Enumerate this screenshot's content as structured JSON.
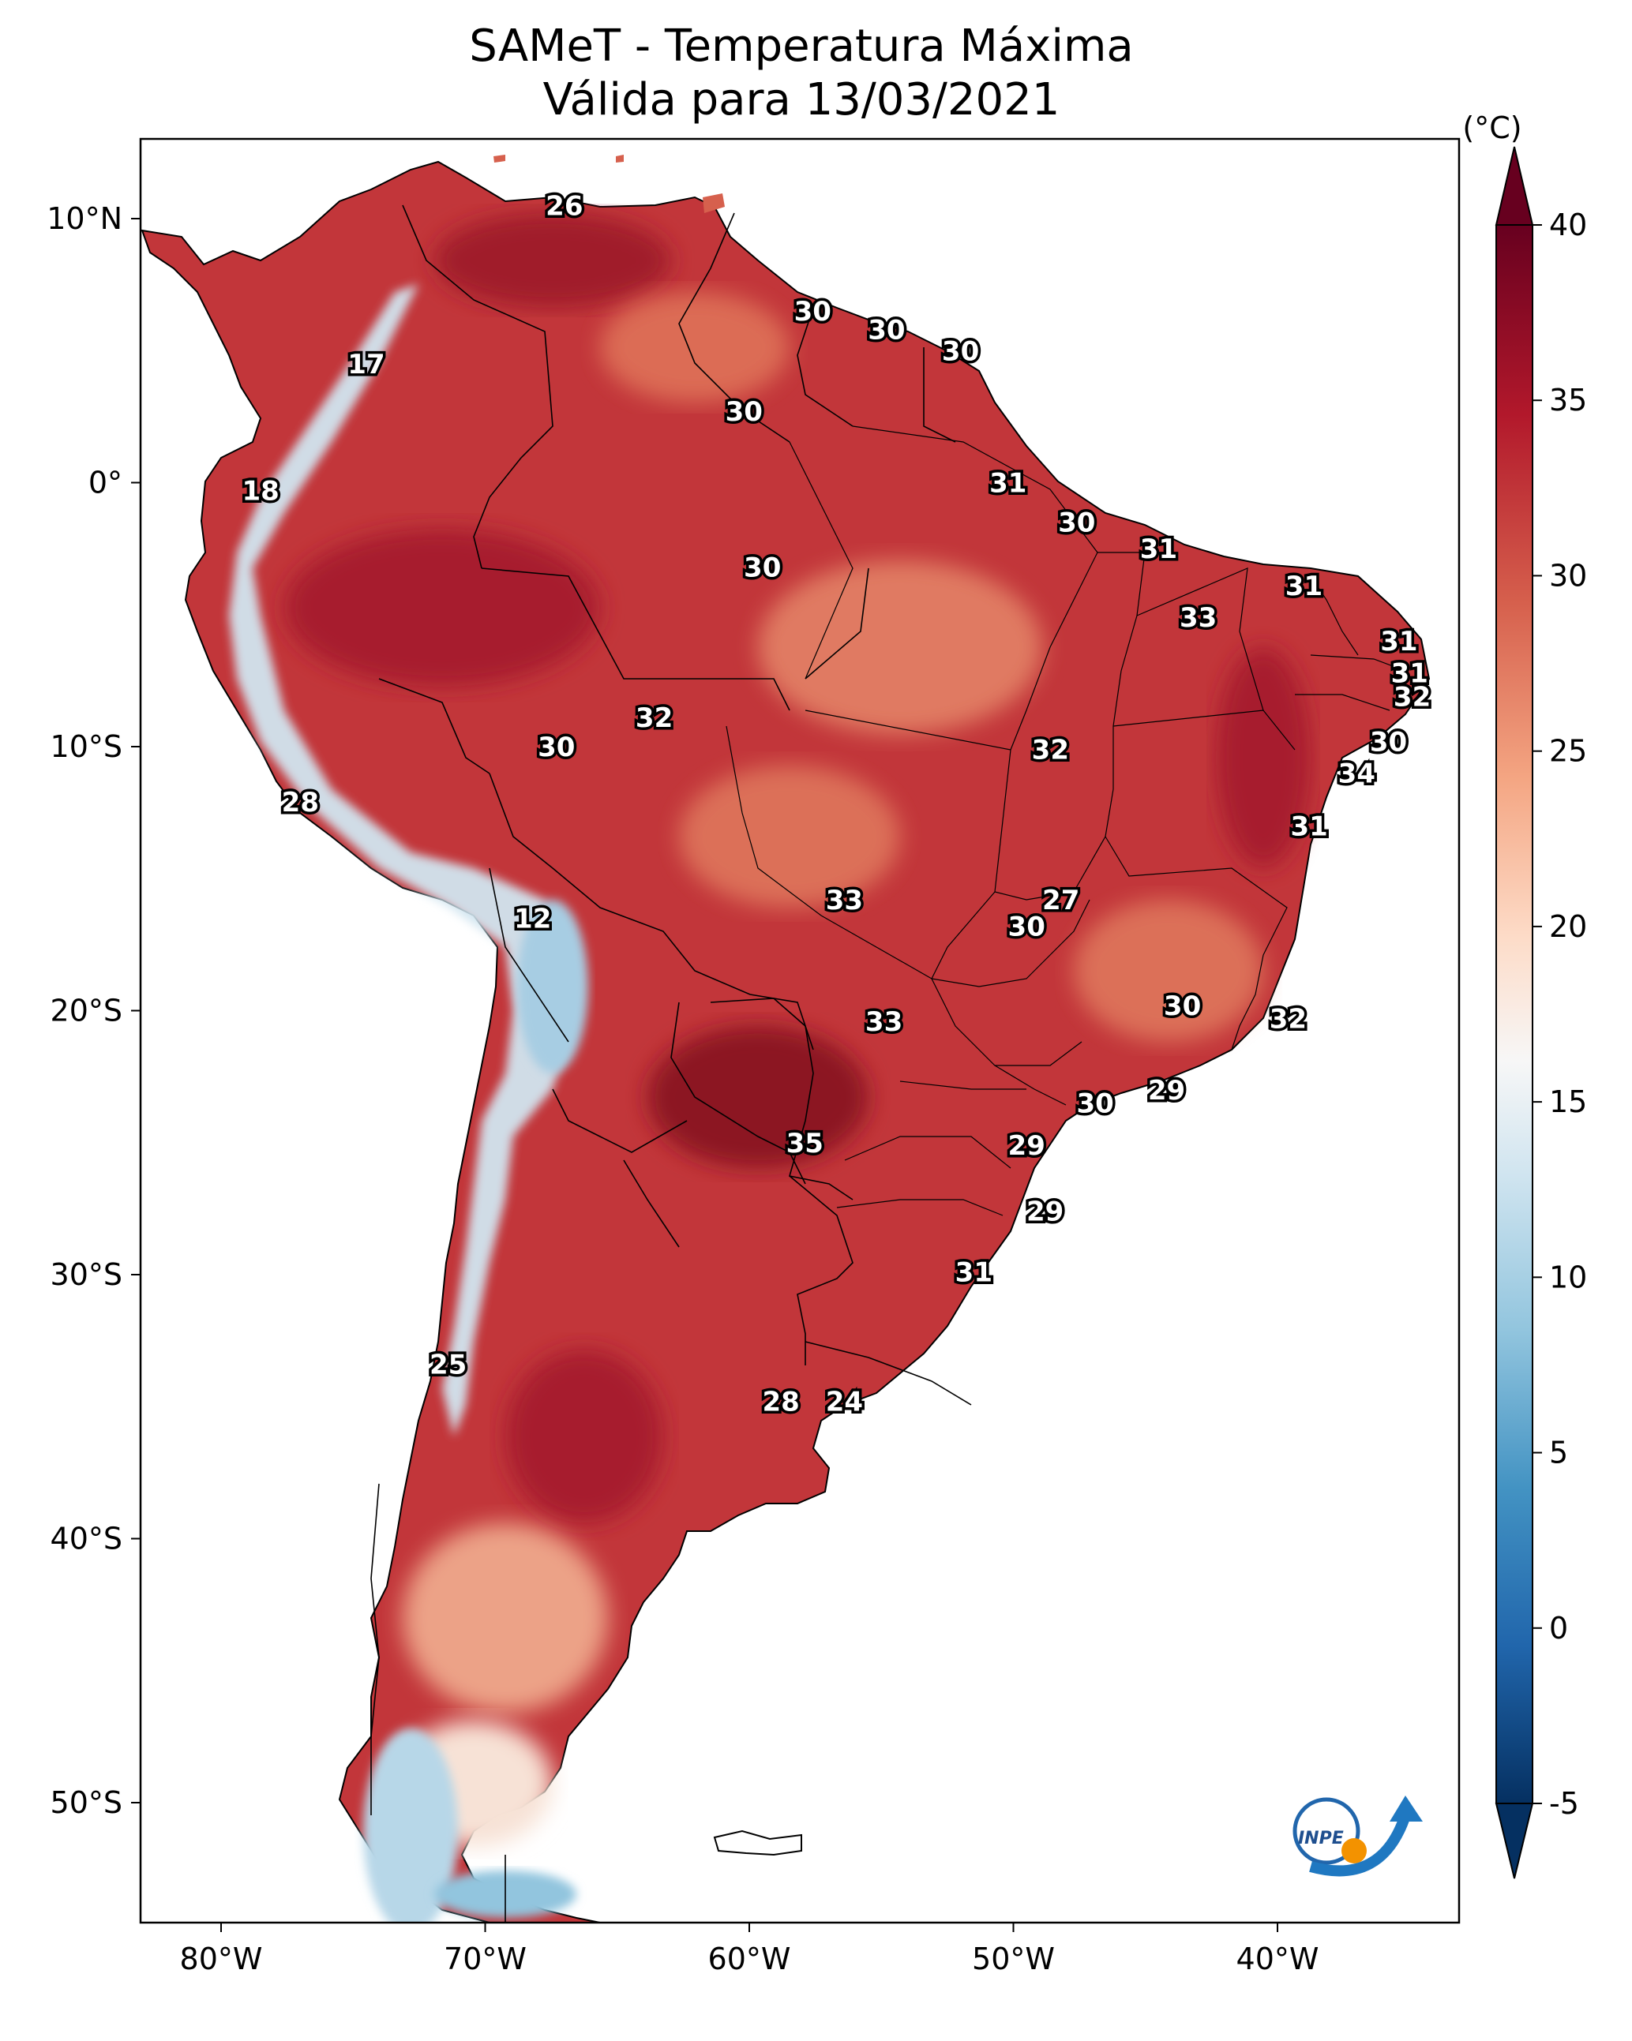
{
  "title": {
    "line1": "SAMeT - Temperatura Máxima",
    "line2": "Válida para 13/03/2021"
  },
  "colorbar": {
    "unit": "(°C)",
    "ticks": [
      "40",
      "35",
      "30",
      "25",
      "20",
      "15",
      "10",
      "5",
      "0",
      "-5"
    ],
    "range": [
      -5,
      40
    ],
    "colors": [
      "#053061",
      "#2166ac",
      "#4393c3",
      "#92c5de",
      "#d1e5f0",
      "#f7f7f7",
      "#fddbc7",
      "#f4a582",
      "#d6604d",
      "#b2182b",
      "#67001f"
    ]
  },
  "axes": {
    "lon_labels": [
      "80°W",
      "70°W",
      "60°W",
      "50°W",
      "40°W"
    ],
    "lat_labels": [
      "10°N",
      "0°",
      "10°S",
      "20°S",
      "30°S",
      "40°S",
      "50°S"
    ]
  },
  "map_labels": [
    {
      "text": "26",
      "lon": -67.0,
      "lat": 10.5
    },
    {
      "text": "17",
      "lon": -74.5,
      "lat": 4.5
    },
    {
      "text": "18",
      "lon": -78.5,
      "lat": -0.3
    },
    {
      "text": "30",
      "lon": -57.6,
      "lat": 6.5
    },
    {
      "text": "30",
      "lon": -54.8,
      "lat": 5.8
    },
    {
      "text": "30",
      "lon": -52.0,
      "lat": 5.0
    },
    {
      "text": "30",
      "lon": -60.2,
      "lat": 2.7
    },
    {
      "text": "31",
      "lon": -50.2,
      "lat": 0.0
    },
    {
      "text": "30",
      "lon": -47.6,
      "lat": -1.5
    },
    {
      "text": "31",
      "lon": -44.5,
      "lat": -2.5
    },
    {
      "text": "30",
      "lon": -59.5,
      "lat": -3.2
    },
    {
      "text": "31",
      "lon": -39.0,
      "lat": -3.9
    },
    {
      "text": "33",
      "lon": -43.0,
      "lat": -5.1
    },
    {
      "text": "31",
      "lon": -35.4,
      "lat": -6.0
    },
    {
      "text": "31",
      "lon": -35.0,
      "lat": -7.2
    },
    {
      "text": "32",
      "lon": -34.9,
      "lat": -8.1
    },
    {
      "text": "32",
      "lon": -63.6,
      "lat": -8.9
    },
    {
      "text": "30",
      "lon": -67.3,
      "lat": -10.0
    },
    {
      "text": "32",
      "lon": -48.6,
      "lat": -10.1
    },
    {
      "text": "30",
      "lon": -35.8,
      "lat": -9.8
    },
    {
      "text": "34",
      "lon": -37.0,
      "lat": -11.0
    },
    {
      "text": "28",
      "lon": -77.0,
      "lat": -12.1
    },
    {
      "text": "31",
      "lon": -38.8,
      "lat": -13.0
    },
    {
      "text": "33",
      "lon": -56.4,
      "lat": -15.8
    },
    {
      "text": "27",
      "lon": -48.2,
      "lat": -15.8
    },
    {
      "text": "30",
      "lon": -49.5,
      "lat": -16.8
    },
    {
      "text": "12",
      "lon": -68.2,
      "lat": -16.5
    },
    {
      "text": "30",
      "lon": -43.6,
      "lat": -19.8
    },
    {
      "text": "32",
      "lon": -39.6,
      "lat": -20.3
    },
    {
      "text": "33",
      "lon": -54.9,
      "lat": -20.4
    },
    {
      "text": "29",
      "lon": -44.2,
      "lat": -23.0
    },
    {
      "text": "30",
      "lon": -46.9,
      "lat": -23.5
    },
    {
      "text": "35",
      "lon": -57.9,
      "lat": -25.0
    },
    {
      "text": "29",
      "lon": -49.5,
      "lat": -25.1
    },
    {
      "text": "29",
      "lon": -48.8,
      "lat": -27.6
    },
    {
      "text": "31",
      "lon": -51.5,
      "lat": -29.9
    },
    {
      "text": "25",
      "lon": -71.4,
      "lat": -33.4
    },
    {
      "text": "28",
      "lon": -58.8,
      "lat": -34.8
    },
    {
      "text": "24",
      "lon": -56.4,
      "lat": -34.8
    }
  ]
}
